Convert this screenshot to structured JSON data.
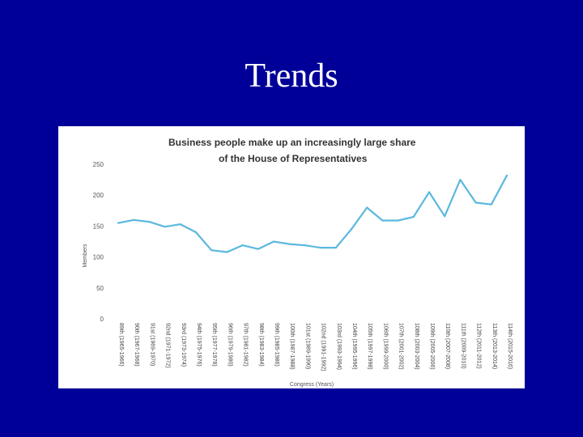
{
  "slide": {
    "title": "Trends"
  },
  "chart_data": {
    "type": "line",
    "title_lines": [
      "Business people make up an increasingly large share",
      "of the House of Representatives"
    ],
    "xlabel": "Congress  (Years)",
    "ylabel": "Members",
    "ylim": [
      0,
      250
    ],
    "yticks": [
      0,
      50,
      100,
      150,
      200,
      250
    ],
    "grid": false,
    "line_color": "#5bb8de",
    "categories": [
      "89th (1965-1966)",
      "90th (1967-1968)",
      "91st (1969-1970)",
      "92nd (1971-1972)",
      "93rd (1973-1974)",
      "94th (1975-1976)",
      "95th (1977-1978)",
      "96th (1979-1980)",
      "97th (1981-1982)",
      "98th (1983-1984)",
      "99th (1985-1986)",
      "100th (1987-1988)",
      "101st (1989-1990)",
      "102nd (1991-1992)",
      "103rd (1993-1994)",
      "104th (1995-1996)",
      "105th (1997-1998)",
      "106th (1999-2000)",
      "107th (2001-2002)",
      "108th (2003-2004)",
      "109th (2005-2006)",
      "110th (2007-2008)",
      "111th (2009-2010)",
      "112th (2011-2012)",
      "113th (2013-2014)",
      "114th (2015-2016)"
    ],
    "values": [
      155,
      160,
      157,
      149,
      153,
      140,
      111,
      108,
      119,
      113,
      125,
      121,
      119,
      115,
      115,
      145,
      180,
      159,
      159,
      165,
      205,
      166,
      225,
      188,
      185,
      232
    ]
  }
}
